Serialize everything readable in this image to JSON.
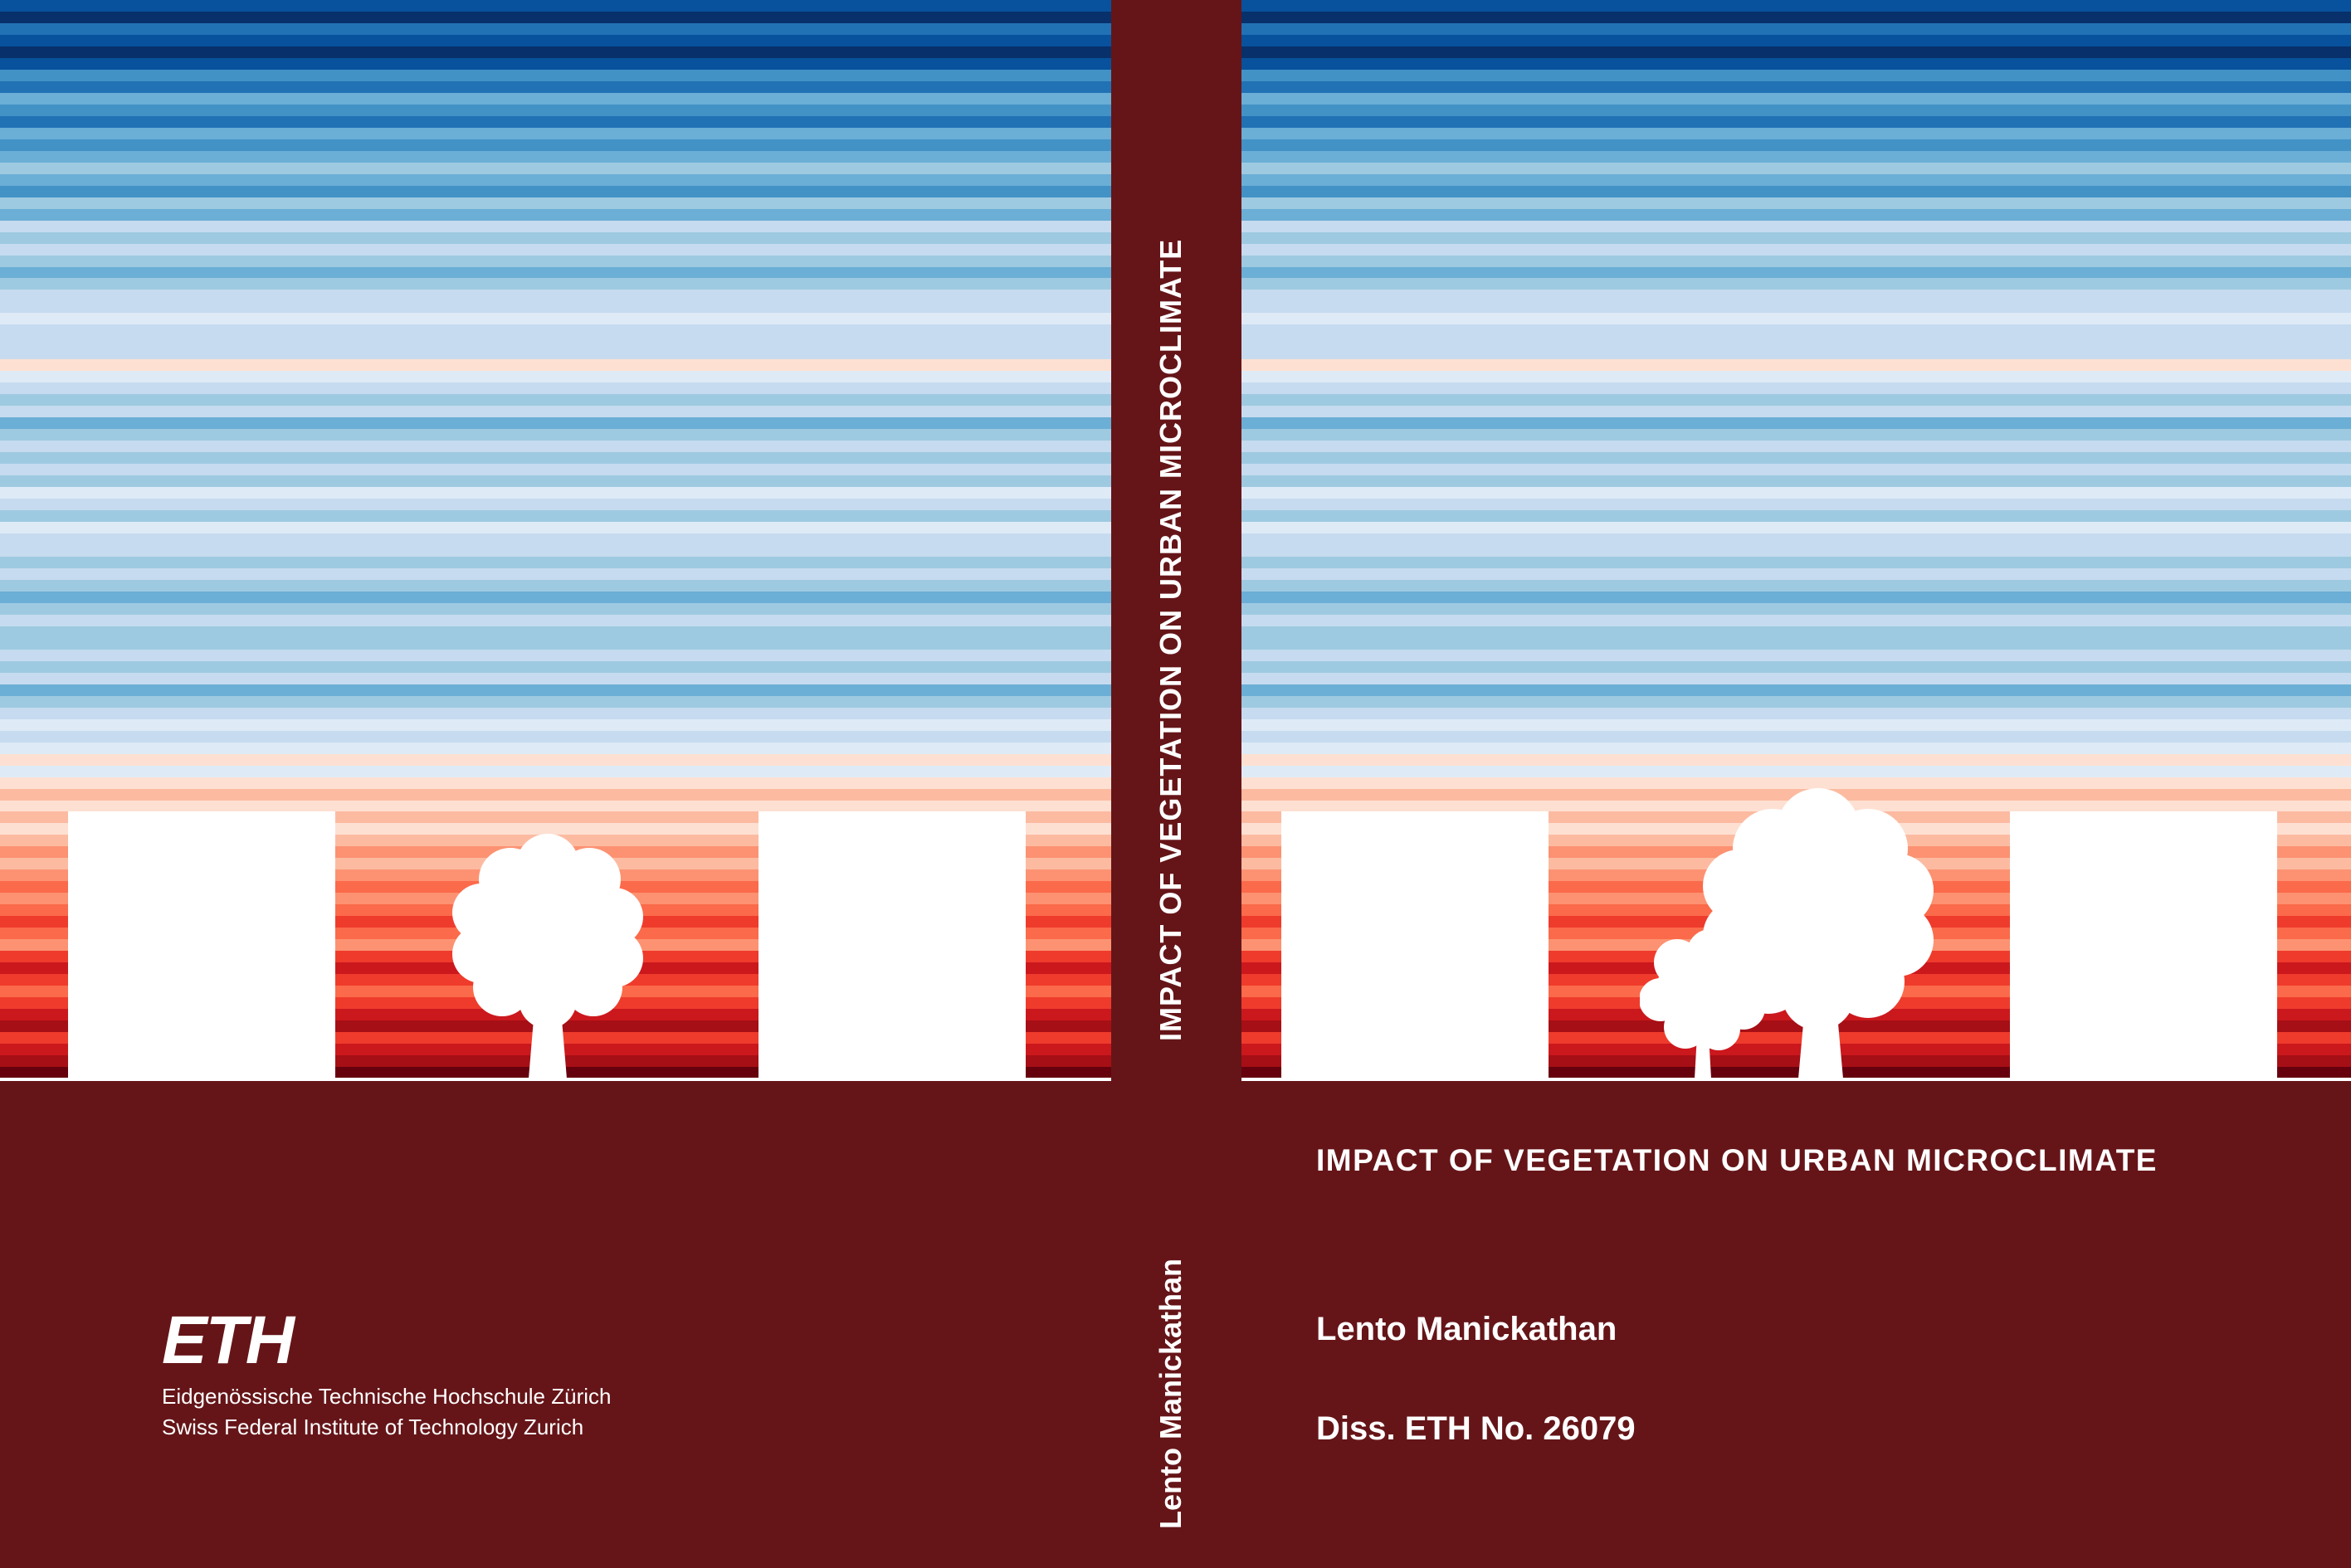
{
  "spine": {
    "title": "IMPACT OF VEGETATION ON URBAN MICROCLIMATE",
    "author": "Lento Manickathan"
  },
  "front": {
    "title": "IMPACT OF VEGETATION ON URBAN MICROCLIMATE",
    "author": "Lento Manickathan",
    "dissertation": "Diss. ETH No. 26079"
  },
  "back": {
    "logo": {
      "wordmark": "ETH",
      "line1": "Eidgenössische Technische Hochschule Zürich",
      "line2": "Swiss Federal Institute of Technology Zurich"
    }
  },
  "colors": {
    "background": "#651518",
    "foreground": "#ffffff",
    "stripe_palette": [
      "#08306b",
      "#08519c",
      "#2171b5",
      "#4292c6",
      "#6baed6",
      "#9ecae1",
      "#c6dbef",
      "#deebf7",
      "#fee0d2",
      "#fcbba1",
      "#fc9272",
      "#fb6a4a",
      "#ef3b2c",
      "#cb181d",
      "#a50f15",
      "#67000d"
    ]
  },
  "warming_stripes": [
    1,
    0,
    2,
    1,
    0,
    1,
    3,
    2,
    4,
    3,
    2,
    4,
    3,
    4,
    5,
    4,
    3,
    5,
    4,
    6,
    5,
    6,
    5,
    4,
    5,
    6,
    6,
    7,
    6,
    6,
    6,
    8,
    7,
    6,
    5,
    6,
    4,
    5,
    6,
    5,
    6,
    5,
    7,
    6,
    5,
    7,
    6,
    6,
    5,
    6,
    5,
    4,
    5,
    6,
    5,
    5,
    6,
    5,
    6,
    4,
    5,
    6,
    7,
    6,
    7,
    8,
    7,
    8,
    9,
    8,
    9,
    8,
    9,
    10,
    9,
    10,
    11,
    10,
    11,
    12,
    11,
    10,
    12,
    13,
    12,
    11,
    12,
    13,
    14,
    12,
    13,
    14,
    15
  ]
}
